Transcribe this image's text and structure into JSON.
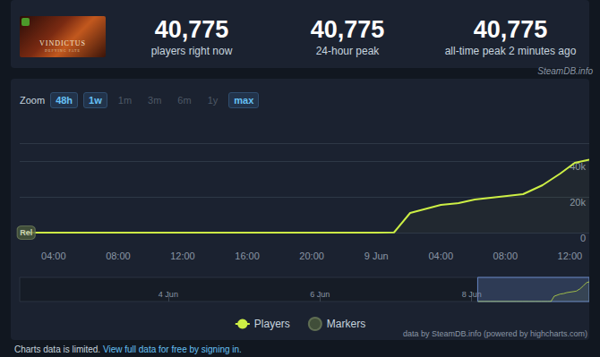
{
  "header": {
    "thumbnail": {
      "title": "VINDICTUS",
      "subtitle": "DEFYING FATE"
    },
    "stats": [
      {
        "value": "40,775",
        "label": "players right now"
      },
      {
        "value": "40,775",
        "label": "24-hour peak"
      },
      {
        "value": "40,775",
        "label": "all-time peak 2 minutes ago"
      }
    ],
    "source": "SteamDB.info"
  },
  "zoom": {
    "label": "Zoom",
    "buttons": [
      {
        "text": "48h",
        "active": true
      },
      {
        "text": "1w",
        "active": true
      },
      {
        "text": "1m",
        "active": false
      },
      {
        "text": "3m",
        "active": false
      },
      {
        "text": "6m",
        "active": false
      },
      {
        "text": "1y",
        "active": false
      },
      {
        "text": "max",
        "active": true
      }
    ]
  },
  "chart_data": {
    "type": "line",
    "series": [
      {
        "name": "Players",
        "type": "line",
        "color": "#cdef45",
        "x": [
          2,
          4,
          6,
          8,
          10,
          12,
          14,
          16,
          18,
          20,
          22,
          24,
          25.1,
          26.1,
          28.0,
          29.1,
          30.1,
          33.1,
          34.3,
          35.4,
          36.3,
          37.2
        ],
        "values": [
          0,
          0,
          0,
          0,
          0,
          0,
          0,
          0,
          0,
          0,
          0,
          0,
          120,
          11000,
          15500,
          16500,
          18500,
          21500,
          26500,
          33000,
          39000,
          40775
        ]
      },
      {
        "name": "Markers",
        "type": "scatter",
        "color": "#4a5a3c",
        "x": [
          2.3
        ],
        "values": [
          0
        ],
        "labels": [
          "Rel"
        ]
      }
    ],
    "xlim": [
      1.9,
      37.2
    ],
    "xticks": [
      {
        "value": 4,
        "label": "04:00"
      },
      {
        "value": 8,
        "label": "08:00"
      },
      {
        "value": 12,
        "label": "12:00"
      },
      {
        "value": 16,
        "label": "16:00"
      },
      {
        "value": 20,
        "label": "20:00"
      },
      {
        "value": 24,
        "label": "9 Jun"
      },
      {
        "value": 28,
        "label": "04:00"
      },
      {
        "value": 32,
        "label": "08:00"
      },
      {
        "value": 36,
        "label": "12:00"
      }
    ],
    "ylim": [
      0,
      50000
    ],
    "yticks": [
      0,
      {
        "value": 20000,
        "label": "20k"
      },
      {
        "value": 40000,
        "label": "40k"
      }
    ],
    "grid": true,
    "legend": "bottom"
  },
  "navigator": {
    "xlim": [
      -143,
      37.2
    ],
    "xticks": [
      {
        "value": -96,
        "label": "4 Jun"
      },
      {
        "value": -48,
        "label": "6 Jun"
      },
      {
        "value": 0,
        "label": "8 Jun"
      }
    ]
  },
  "footer": {
    "credit": "data by SteamDB.info (powered by highcharts.com)",
    "notice": "Charts data is limited.",
    "link": "View full data for free by signing in."
  }
}
